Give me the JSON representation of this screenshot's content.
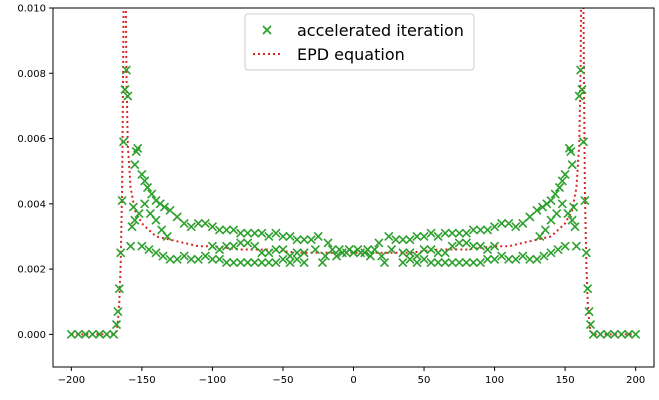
{
  "chart_data": {
    "type": "scatter",
    "title": "",
    "xlabel": "",
    "ylabel": "",
    "xlim": [
      -213,
      213
    ],
    "ylim": [
      -0.001,
      0.01
    ],
    "xticks": [
      -200,
      -150,
      -100,
      -50,
      0,
      50,
      100,
      150,
      200
    ],
    "xtick_labels": [
      "−200",
      "−150",
      "−100",
      "−50",
      "0",
      "50",
      "100",
      "150",
      "200"
    ],
    "yticks": [
      0.0,
      0.002,
      0.004,
      0.006,
      0.008,
      0.01
    ],
    "ytick_labels": [
      "0.000",
      "0.002",
      "0.004",
      "0.006",
      "0.008",
      "0.010"
    ],
    "grid": false,
    "legend_position": "top-center",
    "series": [
      {
        "name": "accelerated iteration",
        "kind": "scatter",
        "marker": "x",
        "color": "#2ca02c",
        "points": [
          [
            -200,
            0.0
          ],
          [
            -195,
            0.0
          ],
          [
            -190,
            0.0
          ],
          [
            -185,
            0.0
          ],
          [
            -180,
            0.0
          ],
          [
            -175,
            0.0
          ],
          [
            -170,
            0.0
          ],
          [
            -168,
            0.0003
          ],
          [
            -167,
            0.0007
          ],
          [
            -166,
            0.0014
          ],
          [
            -165,
            0.0025
          ],
          [
            -164,
            0.0041
          ],
          [
            -163,
            0.0059
          ],
          [
            -162,
            0.0075
          ],
          [
            -161,
            0.0081
          ],
          [
            -160,
            0.0073
          ],
          [
            -158,
            0.0027
          ],
          [
            -157,
            0.0033
          ],
          [
            -156,
            0.0039
          ],
          [
            -155,
            0.0052
          ],
          [
            -154,
            0.0056
          ],
          [
            -153,
            0.0057
          ],
          [
            -150,
            0.0049
          ],
          [
            -148,
            0.0047
          ],
          [
            -146,
            0.0045
          ],
          [
            -143,
            0.0043
          ],
          [
            -140,
            0.0041
          ],
          [
            -137,
            0.004
          ],
          [
            -134,
            0.0039
          ],
          [
            -155,
            0.0035
          ],
          [
            -152,
            0.0037
          ],
          [
            -148,
            0.004
          ],
          [
            -144,
            0.0037
          ],
          [
            -140,
            0.0035
          ],
          [
            -136,
            0.0032
          ],
          [
            -132,
            0.003
          ],
          [
            -150,
            0.0027
          ],
          [
            -145,
            0.0026
          ],
          [
            -140,
            0.0025
          ],
          [
            -135,
            0.0024
          ],
          [
            -130,
            0.0023
          ],
          [
            -125,
            0.0023
          ],
          [
            -130,
            0.0038
          ],
          [
            -125,
            0.0036
          ],
          [
            -120,
            0.0034
          ],
          [
            -115,
            0.0033
          ],
          [
            -110,
            0.0034
          ],
          [
            -105,
            0.0034
          ],
          [
            -120,
            0.0024
          ],
          [
            -115,
            0.0023
          ],
          [
            -110,
            0.0023
          ],
          [
            -105,
            0.0024
          ],
          [
            -100,
            0.0033
          ],
          [
            -95,
            0.0032
          ],
          [
            -90,
            0.0032
          ],
          [
            -85,
            0.0032
          ],
          [
            -80,
            0.0031
          ],
          [
            -75,
            0.0031
          ],
          [
            -70,
            0.0031
          ],
          [
            -100,
            0.0027
          ],
          [
            -95,
            0.0026
          ],
          [
            -90,
            0.0027
          ],
          [
            -85,
            0.0027
          ],
          [
            -80,
            0.0028
          ],
          [
            -75,
            0.0028
          ],
          [
            -70,
            0.0027
          ],
          [
            -100,
            0.0023
          ],
          [
            -95,
            0.0023
          ],
          [
            -90,
            0.0022
          ],
          [
            -85,
            0.0022
          ],
          [
            -80,
            0.0022
          ],
          [
            -75,
            0.0022
          ],
          [
            -70,
            0.0022
          ],
          [
            -65,
            0.0031
          ],
          [
            -60,
            0.003
          ],
          [
            -55,
            0.0031
          ],
          [
            -50,
            0.003
          ],
          [
            -45,
            0.003
          ],
          [
            -40,
            0.0029
          ],
          [
            -35,
            0.0029
          ],
          [
            -65,
            0.0025
          ],
          [
            -60,
            0.0025
          ],
          [
            -55,
            0.0026
          ],
          [
            -50,
            0.0026
          ],
          [
            -45,
            0.0024
          ],
          [
            -40,
            0.0025
          ],
          [
            -35,
            0.0025
          ],
          [
            -65,
            0.0022
          ],
          [
            -60,
            0.0022
          ],
          [
            -55,
            0.0022
          ],
          [
            -50,
            0.0023
          ],
          [
            -45,
            0.0022
          ],
          [
            -40,
            0.0023
          ],
          [
            -35,
            0.0022
          ],
          [
            -30,
            0.0029
          ],
          [
            -27,
            0.0026
          ],
          [
            -25,
            0.003
          ],
          [
            -22,
            0.0022
          ],
          [
            -20,
            0.0024
          ],
          [
            -18,
            0.0028
          ],
          [
            -15,
            0.0026
          ],
          [
            -12,
            0.0024
          ],
          [
            -10,
            0.0026
          ],
          [
            -8,
            0.0025
          ],
          [
            -5,
            0.0025
          ],
          [
            -3,
            0.0026
          ],
          [
            0,
            0.0025
          ],
          [
            3,
            0.0026
          ],
          [
            5,
            0.0025
          ],
          [
            8,
            0.0025
          ],
          [
            10,
            0.0026
          ],
          [
            12,
            0.0024
          ],
          [
            15,
            0.0026
          ],
          [
            18,
            0.0028
          ],
          [
            20,
            0.0024
          ],
          [
            22,
            0.0022
          ],
          [
            25,
            0.003
          ],
          [
            27,
            0.0026
          ],
          [
            30,
            0.0029
          ],
          [
            35,
            0.0029
          ],
          [
            40,
            0.0029
          ],
          [
            45,
            0.003
          ],
          [
            50,
            0.003
          ],
          [
            55,
            0.0031
          ],
          [
            60,
            0.003
          ],
          [
            65,
            0.0031
          ],
          [
            35,
            0.0025
          ],
          [
            40,
            0.0025
          ],
          [
            45,
            0.0024
          ],
          [
            50,
            0.0026
          ],
          [
            55,
            0.0026
          ],
          [
            60,
            0.0025
          ],
          [
            65,
            0.0025
          ],
          [
            35,
            0.0022
          ],
          [
            40,
            0.0023
          ],
          [
            45,
            0.0022
          ],
          [
            50,
            0.0023
          ],
          [
            55,
            0.0022
          ],
          [
            60,
            0.0022
          ],
          [
            65,
            0.0022
          ],
          [
            70,
            0.0031
          ],
          [
            75,
            0.0031
          ],
          [
            80,
            0.0031
          ],
          [
            85,
            0.0032
          ],
          [
            90,
            0.0032
          ],
          [
            95,
            0.0032
          ],
          [
            100,
            0.0033
          ],
          [
            70,
            0.0027
          ],
          [
            75,
            0.0028
          ],
          [
            80,
            0.0028
          ],
          [
            85,
            0.0027
          ],
          [
            90,
            0.0027
          ],
          [
            95,
            0.0026
          ],
          [
            100,
            0.0027
          ],
          [
            70,
            0.0022
          ],
          [
            75,
            0.0022
          ],
          [
            80,
            0.0022
          ],
          [
            85,
            0.0022
          ],
          [
            90,
            0.0022
          ],
          [
            95,
            0.0023
          ],
          [
            100,
            0.0023
          ],
          [
            105,
            0.0034
          ],
          [
            110,
            0.0034
          ],
          [
            115,
            0.0033
          ],
          [
            120,
            0.0034
          ],
          [
            125,
            0.0036
          ],
          [
            130,
            0.0038
          ],
          [
            105,
            0.0024
          ],
          [
            110,
            0.0023
          ],
          [
            115,
            0.0023
          ],
          [
            120,
            0.0024
          ],
          [
            125,
            0.0023
          ],
          [
            130,
            0.0023
          ],
          [
            135,
            0.0024
          ],
          [
            140,
            0.0025
          ],
          [
            145,
            0.0026
          ],
          [
            150,
            0.0027
          ],
          [
            132,
            0.003
          ],
          [
            136,
            0.0032
          ],
          [
            140,
            0.0035
          ],
          [
            144,
            0.0037
          ],
          [
            148,
            0.004
          ],
          [
            152,
            0.0037
          ],
          [
            155,
            0.0035
          ],
          [
            134,
            0.0039
          ],
          [
            137,
            0.004
          ],
          [
            140,
            0.0041
          ],
          [
            143,
            0.0043
          ],
          [
            146,
            0.0045
          ],
          [
            148,
            0.0047
          ],
          [
            150,
            0.0049
          ],
          [
            153,
            0.0057
          ],
          [
            154,
            0.0056
          ],
          [
            155,
            0.0052
          ],
          [
            156,
            0.0039
          ],
          [
            157,
            0.0033
          ],
          [
            158,
            0.0027
          ],
          [
            160,
            0.0073
          ],
          [
            161,
            0.0081
          ],
          [
            162,
            0.0075
          ],
          [
            163,
            0.0059
          ],
          [
            164,
            0.0041
          ],
          [
            165,
            0.0025
          ],
          [
            166,
            0.0014
          ],
          [
            167,
            0.0007
          ],
          [
            168,
            0.0003
          ],
          [
            170,
            0.0
          ],
          [
            175,
            0.0
          ],
          [
            180,
            0.0
          ],
          [
            185,
            0.0
          ],
          [
            190,
            0.0
          ],
          [
            195,
            0.0
          ],
          [
            200,
            0.0
          ]
        ]
      },
      {
        "name": "EPD equation",
        "kind": "line",
        "style": "dotted",
        "color": "#d62728",
        "points": [
          [
            -200,
            0.0
          ],
          [
            -180,
            0.0
          ],
          [
            -170,
            0.0
          ],
          [
            -168,
            0.0001
          ],
          [
            -167,
            0.0004
          ],
          [
            -166,
            0.001
          ],
          [
            -165,
            0.0022
          ],
          [
            -164,
            0.0045
          ],
          [
            -163.5,
            0.007
          ],
          [
            -163,
            0.01
          ],
          [
            -162.8,
            0.011
          ],
          [
            -161.5,
            0.011
          ],
          [
            -161,
            0.0082
          ],
          [
            -160,
            0.0058
          ],
          [
            -158,
            0.0045
          ],
          [
            -155,
            0.0038
          ],
          [
            -150,
            0.0034
          ],
          [
            -145,
            0.0032
          ],
          [
            -140,
            0.003
          ],
          [
            -130,
            0.0029
          ],
          [
            -120,
            0.0028
          ],
          [
            -110,
            0.0027
          ],
          [
            -100,
            0.0027
          ],
          [
            -80,
            0.0026
          ],
          [
            -60,
            0.0026
          ],
          [
            -40,
            0.0025
          ],
          [
            -20,
            0.0025
          ],
          [
            0,
            0.0025
          ],
          [
            20,
            0.0025
          ],
          [
            40,
            0.0025
          ],
          [
            60,
            0.0026
          ],
          [
            80,
            0.0026
          ],
          [
            100,
            0.0027
          ],
          [
            110,
            0.0027
          ],
          [
            120,
            0.0028
          ],
          [
            130,
            0.0029
          ],
          [
            140,
            0.003
          ],
          [
            145,
            0.0032
          ],
          [
            150,
            0.0034
          ],
          [
            155,
            0.0038
          ],
          [
            158,
            0.0045
          ],
          [
            160,
            0.0058
          ],
          [
            161,
            0.0082
          ],
          [
            161.5,
            0.011
          ],
          [
            162.8,
            0.011
          ],
          [
            163,
            0.01
          ],
          [
            163.5,
            0.007
          ],
          [
            164,
            0.0045
          ],
          [
            165,
            0.0022
          ],
          [
            166,
            0.001
          ],
          [
            167,
            0.0004
          ],
          [
            168,
            0.0001
          ],
          [
            170,
            0.0
          ],
          [
            180,
            0.0
          ],
          [
            200,
            0.0
          ]
        ]
      }
    ]
  }
}
